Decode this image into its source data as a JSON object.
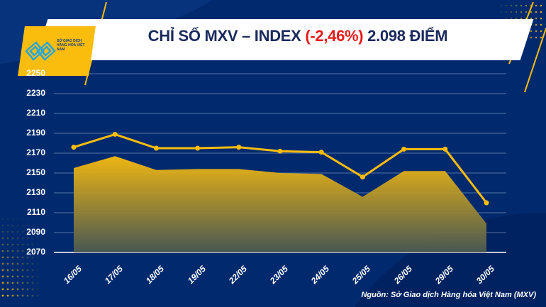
{
  "header": {
    "logo_text": "SỞ GIAO DỊCH HÀNG HÓA VIỆT NAM",
    "title_prefix": "CHỈ SỐ MXV – INDEX ",
    "title_change": "(-2,46%)",
    "title_suffix": " 2.098 ĐIỂM"
  },
  "source": "Nguồn: Sở Giao dịch Hàng hóa Việt Nam (MXV)",
  "colors": {
    "accent": "#fbbd0d",
    "background": "#012a6e",
    "negative": "#e61a1a"
  },
  "chart_data": {
    "type": "line",
    "title": "CHỈ SỐ MXV – INDEX (-2,46%) 2.098 ĐIỂM",
    "categories": [
      "16/05",
      "17/05",
      "18/05",
      "19/05",
      "22/05",
      "23/05",
      "24/05",
      "25/05",
      "26/05",
      "29/05",
      "30/05"
    ],
    "series": [
      {
        "name": "line",
        "values": [
          2176,
          2189,
          2175,
          2175,
          2176,
          2172,
          2171,
          2146,
          2174,
          2174,
          2120
        ]
      },
      {
        "name": "area",
        "values": [
          2155,
          2167,
          2153,
          2154,
          2154,
          2150,
          2149,
          2126,
          2152,
          2152,
          2099
        ]
      }
    ],
    "yticks": [
      2070,
      2090,
      2110,
      2130,
      2150,
      2170,
      2190,
      2210,
      2230,
      2250
    ],
    "ylim": [
      2070,
      2250
    ],
    "grid": true
  }
}
